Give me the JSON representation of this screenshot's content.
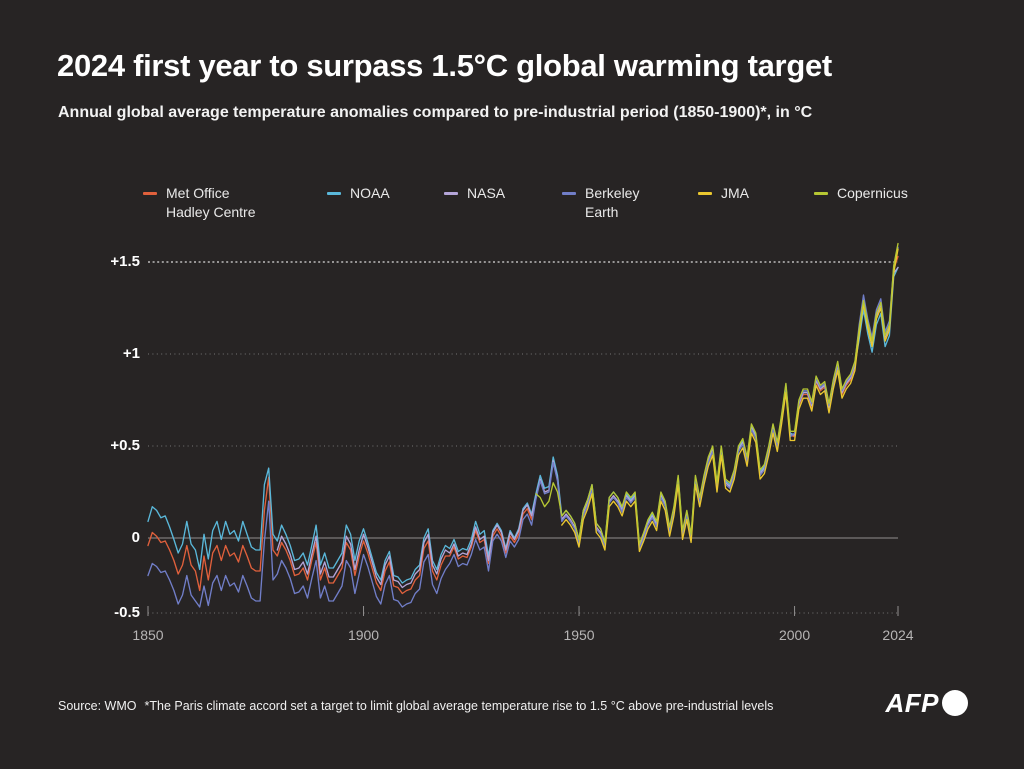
{
  "page": {
    "background": "#272424"
  },
  "header": {
    "title": "2024 first year to surpass 1.5°C global warming target",
    "subtitle": "Annual global average temperature anomalies compared to pre-industrial period (1850-1900)*, in °C"
  },
  "footer": {
    "source": "Source: WMO",
    "note": "*The Paris climate accord set a target to limit global average temperature rise to 1.5 °C above pre-industrial levels",
    "brand": "AFP"
  },
  "legend": {
    "items": [
      {
        "label": "Met Office Hadley Centre",
        "label_lines": [
          "Met Office",
          "Hadley Centre"
        ],
        "color": "#e0603c"
      },
      {
        "label": "NOAA",
        "label_lines": [
          "NOAA"
        ],
        "color": "#5ab8da"
      },
      {
        "label": "NASA",
        "label_lines": [
          "NASA"
        ],
        "color": "#b4a5d8"
      },
      {
        "label": "Berkeley Earth",
        "label_lines": [
          "Berkeley",
          "Earth"
        ],
        "color": "#717ec8"
      },
      {
        "label": "JMA",
        "label_lines": [
          "JMA"
        ],
        "color": "#eac72f"
      },
      {
        "label": "Copernicus",
        "label_lines": [
          "Copernicus"
        ],
        "color": "#b6c733"
      }
    ]
  },
  "chart_data": {
    "type": "line",
    "title": "2024 first year to surpass 1.5°C global warming target",
    "subtitle": "Annual global average temperature anomalies compared to pre-industrial period (1850-1900)*, in °C",
    "unit": "°C",
    "grid": "dotted-horizontal",
    "legend_position": "top",
    "x": {
      "start_year": 1850,
      "end_year": 2024,
      "ticks": [
        {
          "year": 1850,
          "label": "1850"
        },
        {
          "year": 1900,
          "label": "1900"
        },
        {
          "year": 1950,
          "label": "1950"
        },
        {
          "year": 2000,
          "label": "2000"
        },
        {
          "year": 2024,
          "label": "2024"
        }
      ]
    },
    "y": {
      "min": -0.5,
      "max": 1.65,
      "zero_line": true,
      "ticks": [
        {
          "value": 1.5,
          "label": "+1.5",
          "emphasis": true
        },
        {
          "value": 1.0,
          "label": "+1",
          "emphasis": false
        },
        {
          "value": 0.5,
          "label": "+0.5",
          "emphasis": false
        },
        {
          "value": 0,
          "label": "0",
          "emphasis": false
        },
        {
          "value": -0.5,
          "label": "-0.5",
          "emphasis": false
        }
      ]
    },
    "series": [
      {
        "name": "Met Office Hadley Centre",
        "color": "#e0603c",
        "start_year": 1850,
        "values": [
          -0.05,
          0.03,
          0.01,
          -0.03,
          -0.02,
          -0.08,
          -0.15,
          -0.24,
          -0.18,
          -0.05,
          -0.18,
          -0.22,
          -0.35,
          -0.12,
          -0.28,
          -0.1,
          -0.05,
          -0.15,
          -0.05,
          -0.12,
          -0.1,
          -0.16,
          -0.05,
          -0.12,
          -0.2,
          -0.22,
          -0.22,
          0.15,
          0.33,
          -0.08,
          -0.12,
          -0.03,
          -0.08,
          -0.15,
          -0.25,
          -0.24,
          -0.2,
          -0.28,
          -0.15,
          -0.03,
          -0.28,
          -0.2,
          -0.3,
          -0.3,
          -0.25,
          -0.2,
          -0.03,
          -0.08,
          -0.25,
          -0.12,
          -0.02,
          -0.1,
          -0.2,
          -0.3,
          -0.35,
          -0.22,
          -0.16,
          -0.32,
          -0.33,
          -0.37,
          -0.35,
          -0.34,
          -0.28,
          -0.25,
          -0.07,
          -0.02,
          -0.22,
          -0.28,
          -0.18,
          -0.12,
          -0.12,
          -0.06,
          -0.14,
          -0.12,
          -0.13,
          -0.06,
          0.04,
          -0.03,
          -0.01,
          -0.17,
          0.01,
          0.05,
          0.01,
          -0.1,
          0.01,
          -0.03,
          0.02,
          0.13,
          0.16,
          0.1,
          0.22,
          0.32,
          0.25,
          0.26,
          0.42,
          0.32,
          0.1,
          0.13,
          0.1,
          0.06,
          -0.03,
          0.13,
          0.19,
          0.27,
          0.06,
          0.03,
          -0.05,
          0.2,
          0.23,
          0.2,
          0.15,
          0.23,
          0.2,
          0.23,
          -0.06,
          0.01,
          0.08,
          0.12,
          0.07,
          0.23,
          0.18,
          0.04,
          0.15,
          0.32,
          0.02,
          0.13,
          0.0,
          0.32,
          0.2,
          0.32,
          0.42,
          0.48,
          0.28,
          0.48,
          0.3,
          0.28,
          0.35,
          0.48,
          0.52,
          0.42,
          0.6,
          0.55,
          0.35,
          0.38,
          0.48,
          0.6,
          0.5,
          0.65,
          0.82,
          0.56,
          0.55,
          0.72,
          0.78,
          0.78,
          0.71,
          0.85,
          0.8,
          0.82,
          0.7,
          0.83,
          0.93,
          0.78,
          0.83,
          0.86,
          0.93,
          1.12,
          1.28,
          1.15,
          1.05,
          1.2,
          1.26,
          1.08,
          1.14,
          1.46,
          1.53
        ]
      },
      {
        "name": "NOAA",
        "color": "#5ab8da",
        "start_year": 1850,
        "values": [
          0.09,
          0.17,
          0.15,
          0.11,
          0.12,
          0.06,
          -0.01,
          -0.1,
          -0.04,
          0.09,
          -0.04,
          -0.08,
          -0.21,
          0.02,
          -0.14,
          0.04,
          0.09,
          -0.01,
          0.09,
          0.02,
          0.04,
          -0.02,
          0.09,
          0.02,
          -0.06,
          -0.08,
          -0.08,
          0.29,
          0.38,
          0.02,
          -0.02,
          0.07,
          0.02,
          -0.05,
          -0.15,
          -0.14,
          -0.1,
          -0.18,
          -0.05,
          0.07,
          -0.18,
          -0.1,
          -0.2,
          -0.2,
          -0.15,
          -0.1,
          0.07,
          0.02,
          -0.15,
          -0.02,
          0.05,
          -0.03,
          -0.13,
          -0.23,
          -0.28,
          -0.15,
          -0.09,
          -0.25,
          -0.26,
          -0.3,
          -0.28,
          -0.27,
          -0.21,
          -0.18,
          0.0,
          0.05,
          -0.15,
          -0.21,
          -0.11,
          -0.05,
          -0.07,
          -0.01,
          -0.09,
          -0.07,
          -0.08,
          -0.01,
          0.09,
          0.02,
          0.04,
          -0.12,
          0.04,
          0.08,
          0.04,
          -0.07,
          0.04,
          0.0,
          0.05,
          0.16,
          0.19,
          0.13,
          0.24,
          0.34,
          0.27,
          0.28,
          0.44,
          0.34,
          0.12,
          0.15,
          0.12,
          0.08,
          -0.01,
          0.15,
          0.21,
          0.29,
          0.08,
          0.05,
          -0.03,
          0.22,
          0.25,
          0.22,
          0.16,
          0.24,
          0.21,
          0.24,
          -0.05,
          0.02,
          0.09,
          0.13,
          0.08,
          0.24,
          0.19,
          0.05,
          0.16,
          0.33,
          0.03,
          0.14,
          0.01,
          0.33,
          0.21,
          0.33,
          0.43,
          0.49,
          0.29,
          0.49,
          0.31,
          0.29,
          0.36,
          0.49,
          0.53,
          0.43,
          0.61,
          0.56,
          0.36,
          0.39,
          0.49,
          0.61,
          0.51,
          0.66,
          0.83,
          0.57,
          0.56,
          0.73,
          0.79,
          0.79,
          0.72,
          0.86,
          0.81,
          0.83,
          0.71,
          0.84,
          0.94,
          0.79,
          0.84,
          0.87,
          0.94,
          1.08,
          1.24,
          1.11,
          1.01,
          1.16,
          1.22,
          1.04,
          1.1,
          1.42,
          1.47
        ]
      },
      {
        "name": "NASA",
        "color": "#b4a5d8",
        "start_year": 1880,
        "values": [
          -0.08,
          0.01,
          -0.04,
          -0.11,
          -0.21,
          -0.2,
          -0.16,
          -0.24,
          -0.11,
          0.01,
          -0.24,
          -0.16,
          -0.26,
          -0.26,
          -0.21,
          -0.16,
          0.01,
          -0.04,
          -0.21,
          -0.08,
          0.02,
          -0.06,
          -0.16,
          -0.26,
          -0.31,
          -0.18,
          -0.12,
          -0.28,
          -0.29,
          -0.33,
          -0.31,
          -0.3,
          -0.24,
          -0.21,
          -0.03,
          0.02,
          -0.18,
          -0.24,
          -0.14,
          -0.08,
          -0.1,
          -0.04,
          -0.12,
          -0.1,
          -0.11,
          -0.04,
          0.06,
          -0.01,
          0.01,
          -0.15,
          0.03,
          0.07,
          0.03,
          -0.08,
          0.03,
          -0.01,
          0.04,
          0.15,
          0.18,
          0.12,
          0.22,
          0.32,
          0.25,
          0.26,
          0.42,
          0.32,
          0.1,
          0.13,
          0.1,
          0.06,
          -0.03,
          0.13,
          0.19,
          0.27,
          0.06,
          0.03,
          -0.05,
          0.2,
          0.23,
          0.2,
          0.15,
          0.23,
          0.2,
          0.23,
          -0.06,
          0.01,
          0.08,
          0.12,
          0.07,
          0.23,
          0.18,
          0.04,
          0.15,
          0.32,
          0.02,
          0.13,
          0.0,
          0.32,
          0.2,
          0.32,
          0.42,
          0.48,
          0.28,
          0.48,
          0.3,
          0.28,
          0.35,
          0.48,
          0.52,
          0.42,
          0.6,
          0.55,
          0.35,
          0.38,
          0.48,
          0.6,
          0.5,
          0.65,
          0.82,
          0.56,
          0.56,
          0.73,
          0.79,
          0.79,
          0.72,
          0.86,
          0.81,
          0.83,
          0.71,
          0.84,
          0.94,
          0.79,
          0.84,
          0.87,
          0.94,
          1.13,
          1.29,
          1.16,
          1.06,
          1.21,
          1.27,
          1.09,
          1.15,
          1.44,
          1.47
        ]
      },
      {
        "name": "Berkeley Earth",
        "color": "#717ec8",
        "start_year": 1850,
        "values": [
          -0.25,
          -0.17,
          -0.19,
          -0.23,
          -0.22,
          -0.28,
          -0.35,
          -0.44,
          -0.38,
          -0.25,
          -0.38,
          -0.42,
          -0.46,
          -0.32,
          -0.45,
          -0.3,
          -0.25,
          -0.35,
          -0.25,
          -0.32,
          -0.3,
          -0.36,
          -0.25,
          -0.32,
          -0.4,
          -0.42,
          -0.42,
          -0.02,
          0.2,
          -0.28,
          -0.24,
          -0.15,
          -0.2,
          -0.27,
          -0.37,
          -0.36,
          -0.32,
          -0.4,
          -0.27,
          -0.15,
          -0.4,
          -0.32,
          -0.42,
          -0.42,
          -0.37,
          -0.32,
          -0.15,
          -0.2,
          -0.37,
          -0.24,
          -0.11,
          -0.19,
          -0.29,
          -0.39,
          -0.44,
          -0.31,
          -0.25,
          -0.41,
          -0.42,
          -0.46,
          -0.44,
          -0.43,
          -0.37,
          -0.34,
          -0.16,
          -0.11,
          -0.31,
          -0.37,
          -0.27,
          -0.21,
          -0.17,
          -0.11,
          -0.19,
          -0.17,
          -0.18,
          -0.11,
          -0.01,
          -0.08,
          -0.06,
          -0.22,
          -0.02,
          0.02,
          -0.02,
          -0.13,
          -0.02,
          -0.06,
          -0.01,
          0.1,
          0.13,
          0.07,
          0.21,
          0.31,
          0.24,
          0.25,
          0.41,
          0.31,
          0.09,
          0.12,
          0.09,
          0.05,
          -0.04,
          0.12,
          0.18,
          0.26,
          0.05,
          0.02,
          -0.06,
          0.19,
          0.22,
          0.19,
          0.14,
          0.22,
          0.19,
          0.22,
          -0.07,
          0.0,
          0.07,
          0.11,
          0.06,
          0.22,
          0.17,
          0.03,
          0.14,
          0.31,
          0.01,
          0.12,
          -0.01,
          0.31,
          0.19,
          0.31,
          0.41,
          0.47,
          0.27,
          0.47,
          0.29,
          0.27,
          0.34,
          0.47,
          0.51,
          0.41,
          0.59,
          0.54,
          0.34,
          0.37,
          0.47,
          0.59,
          0.49,
          0.64,
          0.81,
          0.55,
          0.57,
          0.74,
          0.8,
          0.8,
          0.73,
          0.87,
          0.82,
          0.84,
          0.72,
          0.85,
          0.95,
          0.8,
          0.85,
          0.88,
          0.95,
          1.16,
          1.32,
          1.19,
          1.09,
          1.24,
          1.3,
          1.12,
          1.18,
          1.47,
          1.58
        ]
      },
      {
        "name": "JMA",
        "color": "#eac72f",
        "start_year": 1946,
        "values": [
          0.07,
          0.1,
          0.07,
          0.03,
          -0.06,
          0.1,
          0.16,
          0.24,
          0.03,
          0.0,
          -0.08,
          0.17,
          0.2,
          0.17,
          0.12,
          0.2,
          0.17,
          0.2,
          -0.09,
          -0.02,
          0.05,
          0.09,
          0.04,
          0.2,
          0.15,
          0.01,
          0.12,
          0.29,
          -0.01,
          0.1,
          -0.03,
          0.29,
          0.17,
          0.29,
          0.39,
          0.45,
          0.25,
          0.45,
          0.27,
          0.25,
          0.32,
          0.45,
          0.49,
          0.39,
          0.57,
          0.52,
          0.32,
          0.35,
          0.45,
          0.57,
          0.47,
          0.62,
          0.79,
          0.53,
          0.53,
          0.7,
          0.76,
          0.76,
          0.69,
          0.83,
          0.78,
          0.8,
          0.68,
          0.81,
          0.91,
          0.76,
          0.81,
          0.84,
          0.91,
          1.11,
          1.27,
          1.14,
          1.04,
          1.19,
          1.25,
          1.07,
          1.13,
          1.44,
          1.57
        ]
      },
      {
        "name": "Copernicus",
        "color": "#b6c733",
        "start_year": 1940,
        "values": [
          0.24,
          0.22,
          0.17,
          0.2,
          0.3,
          0.25,
          0.12,
          0.15,
          0.12,
          0.08,
          -0.01,
          0.15,
          0.21,
          0.29,
          0.08,
          0.05,
          -0.03,
          0.22,
          0.25,
          0.22,
          0.17,
          0.25,
          0.22,
          0.25,
          -0.04,
          0.03,
          0.1,
          0.14,
          0.09,
          0.25,
          0.2,
          0.06,
          0.17,
          0.34,
          0.04,
          0.15,
          0.02,
          0.34,
          0.22,
          0.34,
          0.44,
          0.5,
          0.3,
          0.5,
          0.32,
          0.3,
          0.37,
          0.5,
          0.54,
          0.44,
          0.62,
          0.57,
          0.37,
          0.4,
          0.5,
          0.62,
          0.52,
          0.67,
          0.84,
          0.58,
          0.58,
          0.75,
          0.81,
          0.81,
          0.74,
          0.88,
          0.83,
          0.85,
          0.73,
          0.86,
          0.96,
          0.81,
          0.86,
          0.89,
          0.96,
          1.14,
          1.29,
          1.17,
          1.07,
          1.22,
          1.28,
          1.1,
          1.16,
          1.48,
          1.6
        ]
      }
    ]
  }
}
